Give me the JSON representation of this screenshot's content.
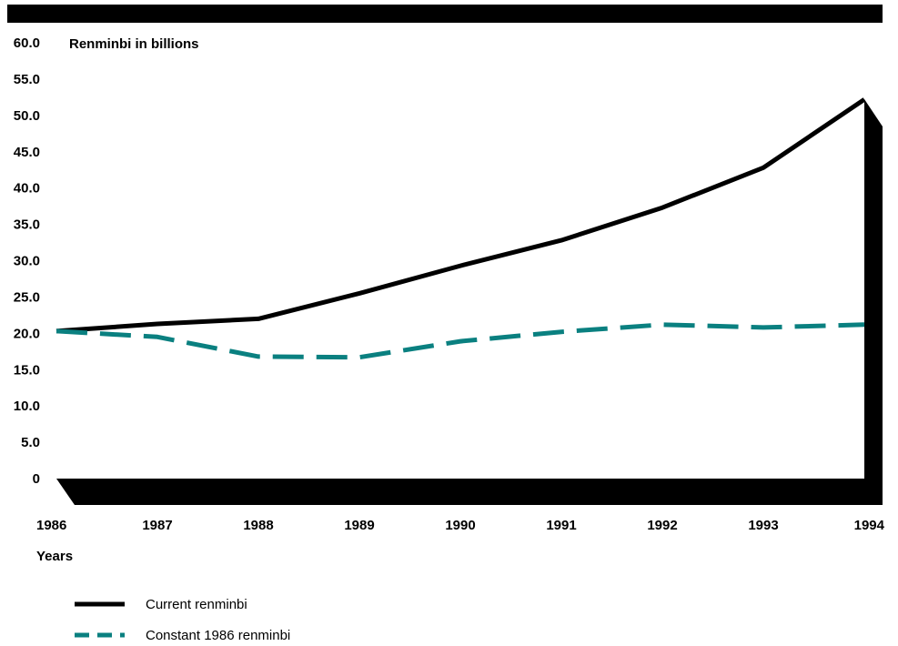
{
  "chart_data": {
    "type": "line",
    "ylabel": "Renminbi in billions",
    "xlabel": "Years",
    "x": [
      1986,
      1987,
      1988,
      1989,
      1990,
      1991,
      1992,
      1993,
      1994
    ],
    "ylim": [
      0,
      60
    ],
    "yticks": [
      "60.0",
      "55.0",
      "50.0",
      "45.0",
      "40.0",
      "35.0",
      "30.0",
      "25.0",
      "20.0",
      "15.0",
      "10.0",
      "5.0",
      "0"
    ],
    "grid": false,
    "legend_position": "bottom-left",
    "series": [
      {
        "name": "Current renminbi",
        "color": "#000000",
        "style": "solid",
        "values": [
          20.3,
          21.3,
          22.0,
          25.5,
          29.3,
          32.8,
          37.3,
          42.8,
          52.2
        ]
      },
      {
        "name": "Constant 1986 renminbi",
        "color": "#0a8080",
        "style": "dashed",
        "values": [
          20.3,
          19.5,
          16.8,
          16.7,
          18.9,
          20.2,
          21.2,
          20.8,
          21.2
        ]
      }
    ]
  }
}
